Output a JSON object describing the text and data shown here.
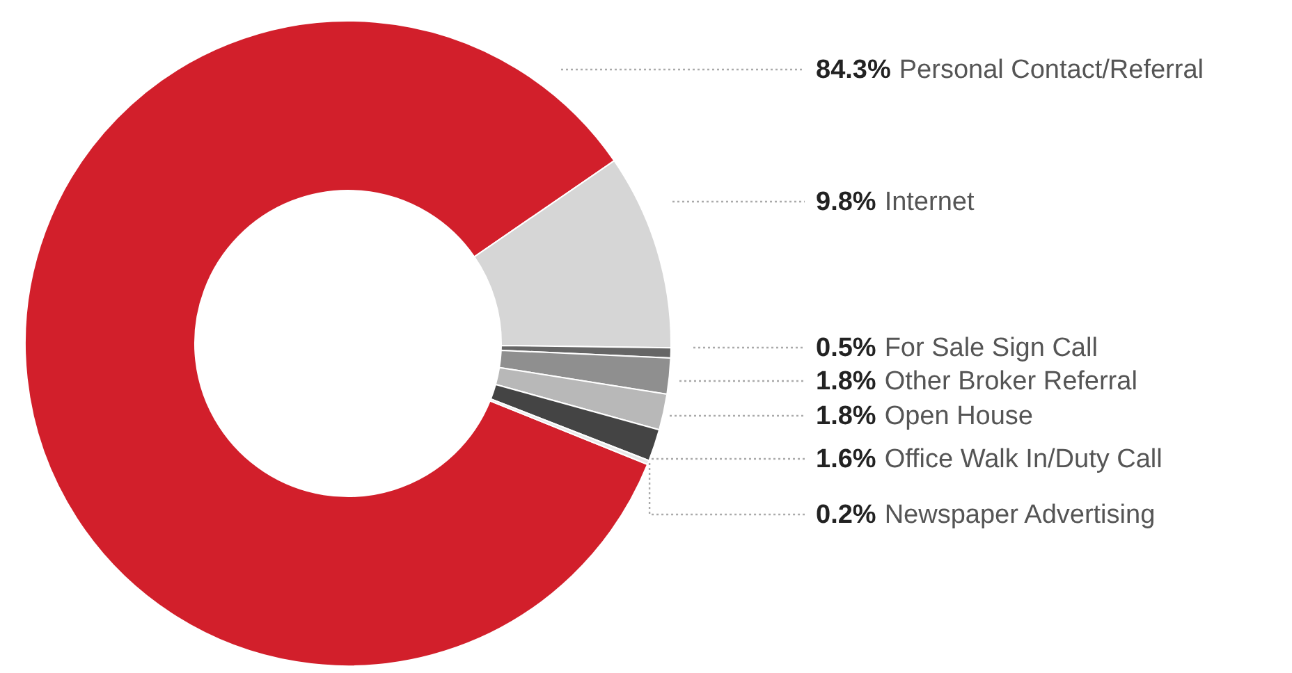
{
  "chart_data": {
    "type": "donut",
    "categories": [
      "Personal Contact/Referral",
      "Internet",
      "For Sale Sign Call",
      "Other Broker Referral",
      "Open House",
      "Office Walk In/Duty Call",
      "Newspaper Advertising"
    ],
    "values": [
      84.3,
      9.8,
      0.5,
      1.8,
      1.8,
      1.6,
      0.2
    ],
    "value_labels": [
      "84.3%",
      "9.8%",
      "0.5%",
      "1.8%",
      "1.8%",
      "1.6%",
      "0.2%"
    ],
    "colors": [
      "#d21f2b",
      "#d6d6d6",
      "#666666",
      "#8f8f8f",
      "#b8b8b8",
      "#444444",
      "#e8e8e8"
    ]
  }
}
